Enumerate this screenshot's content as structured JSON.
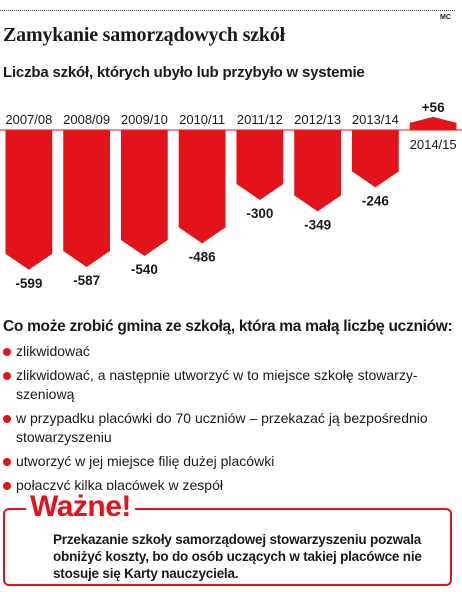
{
  "credit": "MC",
  "title": "Zamykanie samorządowych szkół",
  "subtitle": "Liczba szkół, których ubyło lub przybyło w systemie",
  "chart_data": {
    "type": "bar",
    "categories": [
      "2007/08",
      "2008/09",
      "2009/10",
      "2010/11",
      "2011/12",
      "2012/13",
      "2013/14",
      "2014/15"
    ],
    "values": [
      -599,
      -587,
      -540,
      -486,
      -300,
      -349,
      -246,
      56
    ],
    "labels": [
      "-599",
      "-587",
      "-540",
      "-486",
      "-300",
      "-349",
      "-246",
      "+56"
    ],
    "title": "Liczba szkół, których ubyło lub przybyło w systemie",
    "xlabel": "",
    "ylabel": "",
    "grid": false,
    "color": "#e3131b"
  },
  "options_title": "Co może zrobić gmina ze szkołą, która ma małą liczbę uczniów:",
  "options": [
    "zlikwidować",
    "zlikwidować, a następnie utworzyć w to miejsce szkołę stowarzy- szeniową",
    "w przypadku placówki do 70 uczniów – przekazać ją bezpośrednio stowarzyszeniu",
    "utworzyć w jej miejsce filię dużej placówki",
    "połączyć kilka placówek w zespół"
  ],
  "note_heading": "Ważne!",
  "note_text": "Przekazanie szkoły samorządowej stowarzyszeniu pozwala obniżyć koszty, bo do osób uczących w takiej placówce nie stosuje się Karty nauczyciela.",
  "colors": {
    "accent": "#e3131b",
    "text": "#1a1a1a"
  }
}
